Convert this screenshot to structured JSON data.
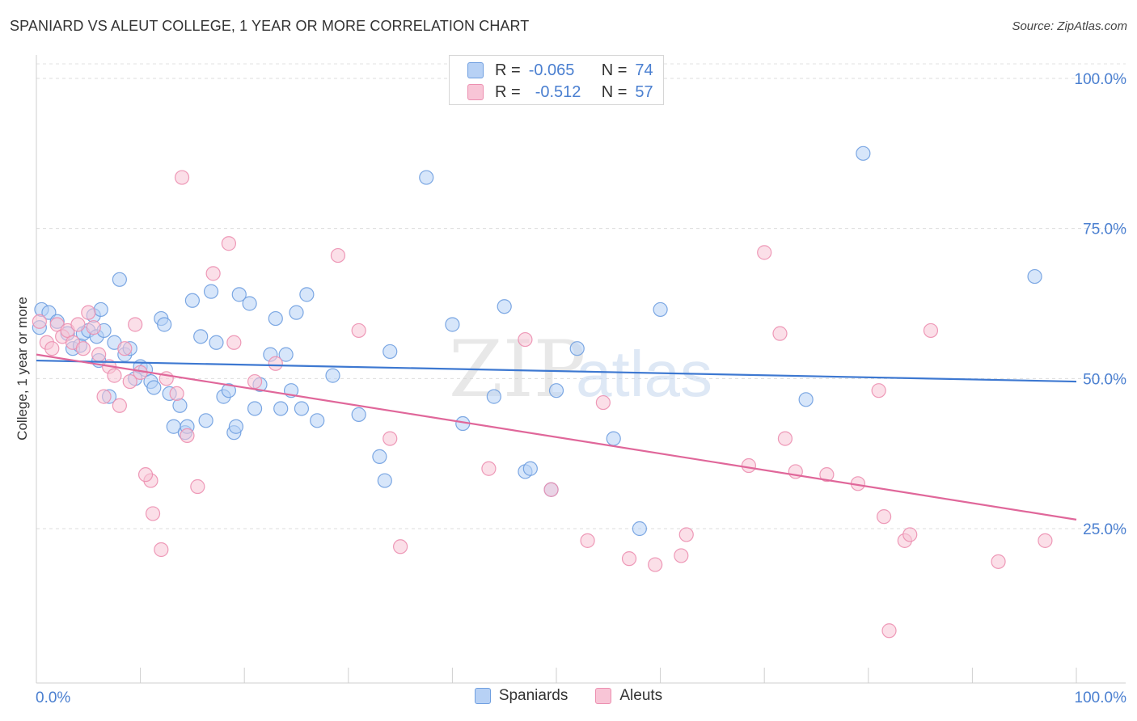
{
  "title": "SPANIARD VS ALEUT COLLEGE, 1 YEAR OR MORE CORRELATION CHART",
  "source": "Source: ZipAtlas.com",
  "watermark": {
    "zip": "ZIP",
    "atlas": "atlas"
  },
  "stats": [
    {
      "r_label": "R =",
      "r_value": "-0.065",
      "n_label": "N =",
      "n_value": "74",
      "fill": "#b7d1f5",
      "stroke": "#6f9fe0"
    },
    {
      "r_label": "R =",
      "r_value": "-0.512",
      "n_label": "N =",
      "n_value": "57",
      "fill": "#f8c5d6",
      "stroke": "#ec8fb0"
    }
  ],
  "legend": [
    {
      "label": "Spaniards",
      "fill": "#b7d1f5",
      "stroke": "#6f9fe0"
    },
    {
      "label": "Aleuts",
      "fill": "#f8c5d6",
      "stroke": "#ec8fb0"
    }
  ],
  "chart_data": {
    "type": "scatter",
    "ylabel": "College, 1 year or more",
    "xlim": [
      0,
      100
    ],
    "ylim": [
      0,
      100
    ],
    "x_tick_labels": [
      "0.0%",
      "100.0%"
    ],
    "y_tick_labels": [
      {
        "value": 25,
        "label": "25.0%"
      },
      {
        "value": 50,
        "label": "50.0%"
      },
      {
        "value": 75,
        "label": "75.0%"
      },
      {
        "value": 100,
        "label": "100.0%"
      }
    ],
    "series": [
      {
        "name": "Spaniards",
        "color": "#6f9fe0",
        "fill": "#b7d1f5",
        "line_color": "#3d78d1",
        "trend": [
          [
            0,
            53.0
          ],
          [
            100,
            49.5
          ]
        ],
        "points": [
          [
            0.5,
            61.5
          ],
          [
            1.2,
            61.0
          ],
          [
            2.0,
            59.5
          ],
          [
            3.0,
            57.5
          ],
          [
            3.5,
            55.0
          ],
          [
            4.2,
            55.5
          ],
          [
            4.5,
            57.5
          ],
          [
            5.0,
            58.0
          ],
          [
            5.5,
            60.5
          ],
          [
            5.8,
            57.0
          ],
          [
            6.0,
            53.0
          ],
          [
            6.2,
            61.5
          ],
          [
            6.5,
            58.0
          ],
          [
            7.0,
            47.0
          ],
          [
            7.5,
            56.0
          ],
          [
            8.0,
            66.5
          ],
          [
            8.5,
            54.0
          ],
          [
            9.0,
            55.0
          ],
          [
            9.5,
            50.0
          ],
          [
            10.0,
            52.0
          ],
          [
            10.5,
            51.5
          ],
          [
            11.0,
            49.5
          ],
          [
            11.3,
            48.5
          ],
          [
            12.0,
            60.0
          ],
          [
            12.3,
            59.0
          ],
          [
            12.8,
            47.5
          ],
          [
            13.2,
            42.0
          ],
          [
            13.8,
            45.5
          ],
          [
            14.3,
            41.0
          ],
          [
            14.5,
            42.0
          ],
          [
            15.0,
            63.0
          ],
          [
            15.8,
            57.0
          ],
          [
            16.3,
            43.0
          ],
          [
            16.8,
            64.5
          ],
          [
            17.3,
            56.0
          ],
          [
            18.0,
            47.0
          ],
          [
            18.5,
            48.0
          ],
          [
            19.0,
            41.0
          ],
          [
            19.2,
            42.0
          ],
          [
            19.5,
            64.0
          ],
          [
            20.5,
            62.5
          ],
          [
            21.0,
            45.0
          ],
          [
            21.5,
            49.0
          ],
          [
            22.5,
            54.0
          ],
          [
            23.0,
            60.0
          ],
          [
            23.5,
            45.0
          ],
          [
            24.0,
            54.0
          ],
          [
            24.5,
            48.0
          ],
          [
            25.0,
            61.0
          ],
          [
            25.5,
            45.0
          ],
          [
            26.0,
            64.0
          ],
          [
            27.0,
            43.0
          ],
          [
            28.5,
            50.5
          ],
          [
            31.0,
            44.0
          ],
          [
            33.0,
            37.0
          ],
          [
            33.5,
            33.0
          ],
          [
            34.0,
            54.5
          ],
          [
            37.5,
            83.5
          ],
          [
            40.0,
            59.0
          ],
          [
            41.0,
            42.5
          ],
          [
            44.0,
            47.0
          ],
          [
            45.0,
            62.0
          ],
          [
            47.0,
            34.5
          ],
          [
            47.5,
            35.0
          ],
          [
            49.5,
            31.5
          ],
          [
            50.0,
            48.0
          ],
          [
            52.0,
            55.0
          ],
          [
            55.5,
            40.0
          ],
          [
            58.0,
            25.0
          ],
          [
            60.0,
            61.5
          ],
          [
            74.0,
            46.5
          ],
          [
            79.5,
            87.5
          ],
          [
            96.0,
            67.0
          ],
          [
            0.3,
            58.5
          ]
        ]
      },
      {
        "name": "Aleuts",
        "color": "#ec8fb0",
        "fill": "#f8c5d6",
        "line_color": "#e0679a",
        "trend": [
          [
            0,
            54.0
          ],
          [
            100,
            26.5
          ]
        ],
        "points": [
          [
            0.3,
            59.5
          ],
          [
            1.0,
            56.0
          ],
          [
            1.5,
            55.0
          ],
          [
            2.0,
            59.0
          ],
          [
            2.5,
            57.0
          ],
          [
            3.0,
            58.0
          ],
          [
            3.5,
            56.0
          ],
          [
            4.0,
            59.0
          ],
          [
            4.5,
            55.0
          ],
          [
            5.0,
            61.0
          ],
          [
            5.5,
            58.5
          ],
          [
            6.0,
            54.0
          ],
          [
            6.5,
            47.0
          ],
          [
            7.0,
            52.0
          ],
          [
            7.5,
            50.5
          ],
          [
            8.0,
            45.5
          ],
          [
            8.5,
            55.0
          ],
          [
            9.0,
            49.5
          ],
          [
            9.5,
            59.0
          ],
          [
            10.0,
            51.0
          ],
          [
            11.0,
            33.0
          ],
          [
            11.2,
            27.5
          ],
          [
            10.5,
            34.0
          ],
          [
            12.5,
            50.0
          ],
          [
            13.5,
            47.5
          ],
          [
            14.0,
            83.5
          ],
          [
            15.5,
            32.0
          ],
          [
            17.0,
            67.5
          ],
          [
            18.5,
            72.5
          ],
          [
            19.0,
            56.0
          ],
          [
            21.0,
            49.5
          ],
          [
            23.0,
            52.5
          ],
          [
            29.0,
            70.5
          ],
          [
            31.0,
            58.0
          ],
          [
            34.0,
            40.0
          ],
          [
            35.0,
            22.0
          ],
          [
            43.5,
            35.0
          ],
          [
            47.0,
            56.5
          ],
          [
            49.5,
            31.5
          ],
          [
            53.0,
            23.0
          ],
          [
            54.5,
            46.0
          ],
          [
            57.0,
            20.0
          ],
          [
            59.5,
            19.0
          ],
          [
            62.0,
            20.5
          ],
          [
            62.5,
            24.0
          ],
          [
            68.5,
            35.5
          ],
          [
            70.0,
            71.0
          ],
          [
            71.5,
            57.5
          ],
          [
            72.0,
            40.0
          ],
          [
            73.0,
            34.5
          ],
          [
            76.0,
            34.0
          ],
          [
            79.0,
            32.5
          ],
          [
            81.0,
            48.0
          ],
          [
            81.5,
            27.0
          ],
          [
            83.5,
            23.0
          ],
          [
            84.0,
            24.0
          ],
          [
            86.0,
            58.0
          ]
        ],
        "extra_points": [
          [
            82.0,
            8.0
          ],
          [
            92.5,
            19.5
          ],
          [
            97.0,
            23.0
          ],
          [
            12.0,
            21.5
          ],
          [
            14.5,
            40.5
          ]
        ]
      }
    ]
  }
}
